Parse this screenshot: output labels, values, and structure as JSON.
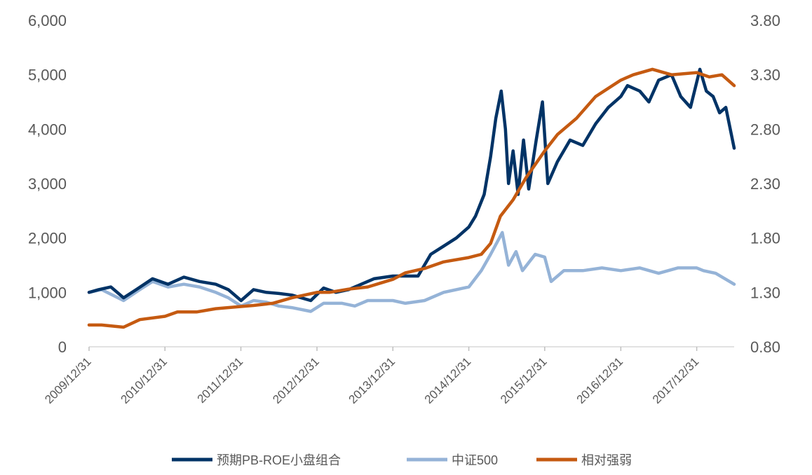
{
  "chart_data": {
    "type": "line",
    "title": "",
    "xlabel": "",
    "ylabel": "",
    "y2label": "",
    "grid": false,
    "legend_position": "bottom",
    "x_ticks": [
      "2009/12/31",
      "2010/12/31",
      "2011/12/31",
      "2012/12/31",
      "2013/12/31",
      "2014/12/31",
      "2015/12/31",
      "2016/12/31",
      "2017/12/31"
    ],
    "x_range": [
      "2009-12-31",
      "2018-06-29"
    ],
    "ylim": [
      0,
      6000
    ],
    "y_ticks": [
      0,
      1000,
      2000,
      3000,
      4000,
      5000,
      6000
    ],
    "y_tick_labels": [
      "0",
      "1,000",
      "2,000",
      "3,000",
      "4,000",
      "5,000",
      "6,000"
    ],
    "y2lim": [
      0.8,
      3.8
    ],
    "y2_ticks": [
      0.8,
      1.3,
      1.8,
      2.3,
      2.8,
      3.3,
      3.8
    ],
    "y2_tick_labels": [
      "0.80",
      "1.30",
      "1.80",
      "2.30",
      "2.80",
      "3.30",
      "3.80"
    ],
    "series": [
      {
        "name": "预期PB-ROE小盘组合",
        "axis": "left",
        "color": "#003366",
        "points": [
          [
            "2009-12-31",
            1000
          ],
          [
            "2010-02-15",
            1050
          ],
          [
            "2010-04-15",
            1100
          ],
          [
            "2010-06-15",
            900
          ],
          [
            "2010-08-15",
            1050
          ],
          [
            "2010-11-01",
            1250
          ],
          [
            "2011-01-15",
            1150
          ],
          [
            "2011-04-01",
            1280
          ],
          [
            "2011-06-15",
            1200
          ],
          [
            "2011-09-01",
            1150
          ],
          [
            "2011-11-01",
            1050
          ],
          [
            "2012-01-01",
            850
          ],
          [
            "2012-03-01",
            1050
          ],
          [
            "2012-05-01",
            1000
          ],
          [
            "2012-07-01",
            980
          ],
          [
            "2012-09-01",
            950
          ],
          [
            "2012-12-01",
            850
          ],
          [
            "2013-02-01",
            1080
          ],
          [
            "2013-04-01",
            1000
          ],
          [
            "2013-06-01",
            1050
          ],
          [
            "2013-08-01",
            1150
          ],
          [
            "2013-10-01",
            1250
          ],
          [
            "2013-12-31",
            1300
          ],
          [
            "2014-03-01",
            1300
          ],
          [
            "2014-05-01",
            1300
          ],
          [
            "2014-07-01",
            1700
          ],
          [
            "2014-09-01",
            1850
          ],
          [
            "2014-11-01",
            2000
          ],
          [
            "2014-12-31",
            2200
          ],
          [
            "2015-02-01",
            2400
          ],
          [
            "2015-03-15",
            2800
          ],
          [
            "2015-04-15",
            3500
          ],
          [
            "2015-05-10",
            4200
          ],
          [
            "2015-06-05",
            4700
          ],
          [
            "2015-06-25",
            4000
          ],
          [
            "2015-07-10",
            3000
          ],
          [
            "2015-08-01",
            3600
          ],
          [
            "2015-08-25",
            2800
          ],
          [
            "2015-09-20",
            3800
          ],
          [
            "2015-10-15",
            2900
          ],
          [
            "2015-11-20",
            3800
          ],
          [
            "2015-12-20",
            4500
          ],
          [
            "2016-01-15",
            3000
          ],
          [
            "2016-03-01",
            3400
          ],
          [
            "2016-05-01",
            3800
          ],
          [
            "2016-07-01",
            3700
          ],
          [
            "2016-09-01",
            4100
          ],
          [
            "2016-11-01",
            4400
          ],
          [
            "2016-12-31",
            4600
          ],
          [
            "2017-02-01",
            4800
          ],
          [
            "2017-04-01",
            4700
          ],
          [
            "2017-05-15",
            4500
          ],
          [
            "2017-07-01",
            4900
          ],
          [
            "2017-09-01",
            5000
          ],
          [
            "2017-10-15",
            4600
          ],
          [
            "2017-12-01",
            4400
          ],
          [
            "2018-01-15",
            5100
          ],
          [
            "2018-02-15",
            4700
          ],
          [
            "2018-03-20",
            4600
          ],
          [
            "2018-04-20",
            4300
          ],
          [
            "2018-05-20",
            4400
          ],
          [
            "2018-06-29",
            3650
          ]
        ]
      },
      {
        "name": "中证500",
        "axis": "left",
        "color": "#95b3d7",
        "points": [
          [
            "2009-12-31",
            1000
          ],
          [
            "2010-03-01",
            1050
          ],
          [
            "2010-06-15",
            850
          ],
          [
            "2010-09-01",
            1050
          ],
          [
            "2010-11-01",
            1200
          ],
          [
            "2011-01-15",
            1100
          ],
          [
            "2011-04-01",
            1150
          ],
          [
            "2011-06-15",
            1100
          ],
          [
            "2011-09-01",
            1000
          ],
          [
            "2011-11-01",
            900
          ],
          [
            "2012-01-01",
            750
          ],
          [
            "2012-03-01",
            850
          ],
          [
            "2012-05-01",
            820
          ],
          [
            "2012-07-01",
            750
          ],
          [
            "2012-09-01",
            720
          ],
          [
            "2012-12-01",
            650
          ],
          [
            "2013-02-01",
            800
          ],
          [
            "2013-05-01",
            800
          ],
          [
            "2013-07-01",
            750
          ],
          [
            "2013-09-01",
            850
          ],
          [
            "2013-12-31",
            850
          ],
          [
            "2014-03-01",
            800
          ],
          [
            "2014-06-01",
            850
          ],
          [
            "2014-09-01",
            1000
          ],
          [
            "2014-12-31",
            1100
          ],
          [
            "2015-03-01",
            1400
          ],
          [
            "2015-04-15",
            1700
          ],
          [
            "2015-06-10",
            2100
          ],
          [
            "2015-07-10",
            1500
          ],
          [
            "2015-08-15",
            1750
          ],
          [
            "2015-09-15",
            1400
          ],
          [
            "2015-11-15",
            1700
          ],
          [
            "2015-12-31",
            1650
          ],
          [
            "2016-01-31",
            1200
          ],
          [
            "2016-04-01",
            1400
          ],
          [
            "2016-07-01",
            1400
          ],
          [
            "2016-10-01",
            1450
          ],
          [
            "2016-12-31",
            1400
          ],
          [
            "2017-04-01",
            1450
          ],
          [
            "2017-07-01",
            1350
          ],
          [
            "2017-10-01",
            1450
          ],
          [
            "2017-12-31",
            1450
          ],
          [
            "2018-02-01",
            1400
          ],
          [
            "2018-04-01",
            1350
          ],
          [
            "2018-06-29",
            1150
          ]
        ]
      },
      {
        "name": "相对强弱",
        "axis": "right",
        "color": "#c55a11",
        "points": [
          [
            "2009-12-31",
            1.0
          ],
          [
            "2010-03-01",
            1.0
          ],
          [
            "2010-06-15",
            0.98
          ],
          [
            "2010-09-01",
            1.05
          ],
          [
            "2010-12-31",
            1.08
          ],
          [
            "2011-03-01",
            1.12
          ],
          [
            "2011-06-01",
            1.12
          ],
          [
            "2011-09-01",
            1.15
          ],
          [
            "2011-12-31",
            1.17
          ],
          [
            "2012-03-01",
            1.18
          ],
          [
            "2012-06-01",
            1.2
          ],
          [
            "2012-09-01",
            1.25
          ],
          [
            "2012-12-31",
            1.3
          ],
          [
            "2013-03-01",
            1.3
          ],
          [
            "2013-06-01",
            1.33
          ],
          [
            "2013-09-01",
            1.35
          ],
          [
            "2013-12-31",
            1.42
          ],
          [
            "2014-03-01",
            1.48
          ],
          [
            "2014-06-01",
            1.52
          ],
          [
            "2014-09-01",
            1.58
          ],
          [
            "2014-12-31",
            1.62
          ],
          [
            "2015-03-01",
            1.65
          ],
          [
            "2015-04-15",
            1.75
          ],
          [
            "2015-06-01",
            2.0
          ],
          [
            "2015-08-01",
            2.15
          ],
          [
            "2015-10-01",
            2.35
          ],
          [
            "2015-12-31",
            2.6
          ],
          [
            "2016-03-01",
            2.75
          ],
          [
            "2016-06-01",
            2.9
          ],
          [
            "2016-09-01",
            3.1
          ],
          [
            "2016-12-31",
            3.25
          ],
          [
            "2017-03-01",
            3.3
          ],
          [
            "2017-06-01",
            3.35
          ],
          [
            "2017-09-01",
            3.3
          ],
          [
            "2017-12-31",
            3.32
          ],
          [
            "2018-03-01",
            3.28
          ],
          [
            "2018-05-01",
            3.3
          ],
          [
            "2018-06-29",
            3.2
          ]
        ]
      }
    ]
  }
}
